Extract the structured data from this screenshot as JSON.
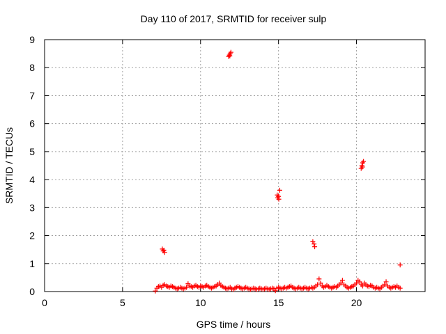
{
  "chart_data": {
    "type": "scatter",
    "title": "Day 110 of 2017, SRMTID for receiver sulp",
    "xlabel": "GPS time / hours",
    "ylabel": "SRMTID / TECUs",
    "xlim": [
      0,
      24.4
    ],
    "ylim": [
      0,
      9
    ],
    "xticks": [
      0,
      5,
      10,
      15,
      20
    ],
    "yticks": [
      0,
      1,
      2,
      3,
      4,
      5,
      6,
      7,
      8,
      9
    ],
    "grid": true,
    "marker": "plus",
    "color": "#ff0000",
    "series": [
      {
        "name": "SRMTID",
        "points": [
          [
            7.1,
            0.02
          ],
          [
            7.2,
            0.12
          ],
          [
            7.3,
            0.18
          ],
          [
            7.4,
            0.2
          ],
          [
            7.5,
            0.15
          ],
          [
            7.6,
            0.22
          ],
          [
            7.7,
            0.25
          ],
          [
            7.8,
            0.2
          ],
          [
            7.9,
            0.18
          ],
          [
            8.0,
            0.15
          ],
          [
            8.1,
            0.2
          ],
          [
            8.2,
            0.18
          ],
          [
            8.3,
            0.15
          ],
          [
            8.4,
            0.12
          ],
          [
            8.5,
            0.1
          ],
          [
            8.6,
            0.12
          ],
          [
            8.7,
            0.15
          ],
          [
            8.8,
            0.12
          ],
          [
            8.9,
            0.1
          ],
          [
            9.0,
            0.12
          ],
          [
            9.1,
            0.15
          ],
          [
            9.2,
            0.28
          ],
          [
            9.3,
            0.2
          ],
          [
            9.4,
            0.18
          ],
          [
            9.5,
            0.15
          ],
          [
            9.6,
            0.2
          ],
          [
            9.7,
            0.22
          ],
          [
            9.8,
            0.18
          ],
          [
            9.9,
            0.15
          ],
          [
            10.0,
            0.2
          ],
          [
            10.1,
            0.18
          ],
          [
            10.2,
            0.15
          ],
          [
            10.3,
            0.2
          ],
          [
            10.4,
            0.22
          ],
          [
            10.5,
            0.18
          ],
          [
            10.6,
            0.15
          ],
          [
            10.7,
            0.12
          ],
          [
            10.8,
            0.15
          ],
          [
            10.9,
            0.18
          ],
          [
            11.0,
            0.2
          ],
          [
            11.1,
            0.25
          ],
          [
            11.2,
            0.3
          ],
          [
            11.3,
            0.22
          ],
          [
            11.4,
            0.18
          ],
          [
            11.5,
            0.15
          ],
          [
            11.6,
            0.12
          ],
          [
            11.7,
            0.1
          ],
          [
            11.8,
            0.12
          ],
          [
            11.9,
            0.15
          ],
          [
            12.0,
            0.1
          ],
          [
            12.1,
            0.08
          ],
          [
            12.2,
            0.12
          ],
          [
            12.3,
            0.15
          ],
          [
            12.4,
            0.18
          ],
          [
            12.5,
            0.15
          ],
          [
            12.6,
            0.12
          ],
          [
            12.7,
            0.1
          ],
          [
            12.8,
            0.12
          ],
          [
            12.9,
            0.15
          ],
          [
            13.0,
            0.12
          ],
          [
            13.1,
            0.1
          ],
          [
            13.2,
            0.08
          ],
          [
            13.3,
            0.1
          ],
          [
            13.4,
            0.12
          ],
          [
            13.5,
            0.1
          ],
          [
            13.6,
            0.08
          ],
          [
            13.7,
            0.1
          ],
          [
            13.8,
            0.12
          ],
          [
            13.9,
            0.1
          ],
          [
            14.0,
            0.08
          ],
          [
            14.1,
            0.1
          ],
          [
            14.2,
            0.12
          ],
          [
            14.3,
            0.1
          ],
          [
            14.4,
            0.08
          ],
          [
            14.5,
            0.1
          ],
          [
            14.6,
            0.12
          ],
          [
            14.7,
            0.1
          ],
          [
            14.8,
            0.03
          ],
          [
            14.9,
            0.12
          ],
          [
            15.0,
            0.15
          ],
          [
            15.1,
            0.12
          ],
          [
            15.2,
            0.1
          ],
          [
            15.3,
            0.12
          ],
          [
            15.4,
            0.15
          ],
          [
            15.5,
            0.12
          ],
          [
            15.6,
            0.15
          ],
          [
            15.7,
            0.18
          ],
          [
            15.8,
            0.2
          ],
          [
            15.9,
            0.15
          ],
          [
            16.0,
            0.12
          ],
          [
            16.1,
            0.1
          ],
          [
            16.2,
            0.12
          ],
          [
            16.3,
            0.15
          ],
          [
            16.4,
            0.12
          ],
          [
            16.5,
            0.1
          ],
          [
            16.6,
            0.12
          ],
          [
            16.7,
            0.15
          ],
          [
            16.8,
            0.12
          ],
          [
            16.9,
            0.1
          ],
          [
            17.0,
            0.12
          ],
          [
            17.1,
            0.15
          ],
          [
            17.2,
            0.12
          ],
          [
            17.3,
            0.15
          ],
          [
            17.4,
            0.2
          ],
          [
            17.5,
            0.25
          ],
          [
            17.6,
            0.45
          ],
          [
            17.7,
            0.3
          ],
          [
            17.8,
            0.2
          ],
          [
            17.9,
            0.15
          ],
          [
            18.0,
            0.18
          ],
          [
            18.1,
            0.22
          ],
          [
            18.2,
            0.18
          ],
          [
            18.3,
            0.15
          ],
          [
            18.4,
            0.12
          ],
          [
            18.5,
            0.15
          ],
          [
            18.6,
            0.18
          ],
          [
            18.7,
            0.15
          ],
          [
            18.8,
            0.2
          ],
          [
            18.9,
            0.25
          ],
          [
            19.0,
            0.3
          ],
          [
            19.1,
            0.4
          ],
          [
            19.2,
            0.25
          ],
          [
            19.3,
            0.2
          ],
          [
            19.4,
            0.15
          ],
          [
            19.5,
            0.12
          ],
          [
            19.6,
            0.15
          ],
          [
            19.7,
            0.18
          ],
          [
            19.8,
            0.2
          ],
          [
            19.9,
            0.25
          ],
          [
            20.0,
            0.3
          ],
          [
            20.1,
            0.4
          ],
          [
            20.2,
            0.35
          ],
          [
            20.3,
            0.25
          ],
          [
            20.4,
            0.2
          ],
          [
            20.5,
            0.3
          ],
          [
            20.6,
            0.25
          ],
          [
            20.7,
            0.2
          ],
          [
            20.8,
            0.18
          ],
          [
            20.9,
            0.22
          ],
          [
            21.0,
            0.2
          ],
          [
            21.1,
            0.15
          ],
          [
            21.2,
            0.12
          ],
          [
            21.3,
            0.15
          ],
          [
            21.4,
            0.12
          ],
          [
            21.5,
            0.1
          ],
          [
            21.6,
            0.15
          ],
          [
            21.7,
            0.2
          ],
          [
            21.8,
            0.25
          ],
          [
            21.9,
            0.35
          ],
          [
            22.0,
            0.2
          ],
          [
            22.1,
            0.15
          ],
          [
            22.2,
            0.12
          ],
          [
            22.3,
            0.15
          ],
          [
            22.4,
            0.18
          ],
          [
            22.5,
            0.15
          ],
          [
            22.6,
            0.2
          ],
          [
            22.7,
            0.15
          ],
          [
            22.8,
            0.12
          ],
          [
            7.55,
            1.52
          ],
          [
            7.6,
            1.45
          ],
          [
            7.65,
            1.48
          ],
          [
            7.7,
            1.4
          ],
          [
            11.8,
            8.4
          ],
          [
            11.85,
            8.45
          ],
          [
            11.9,
            8.5
          ],
          [
            11.95,
            8.55
          ],
          [
            11.88,
            8.42
          ],
          [
            14.92,
            3.45
          ],
          [
            14.95,
            3.35
          ],
          [
            15.0,
            3.4
          ],
          [
            15.02,
            3.3
          ],
          [
            15.08,
            3.62
          ],
          [
            17.2,
            1.78
          ],
          [
            17.28,
            1.7
          ],
          [
            17.32,
            1.6
          ],
          [
            20.3,
            4.4
          ],
          [
            20.35,
            4.5
          ],
          [
            20.4,
            4.6
          ],
          [
            20.45,
            4.65
          ],
          [
            20.38,
            4.45
          ],
          [
            22.8,
            0.95
          ]
        ]
      }
    ]
  }
}
